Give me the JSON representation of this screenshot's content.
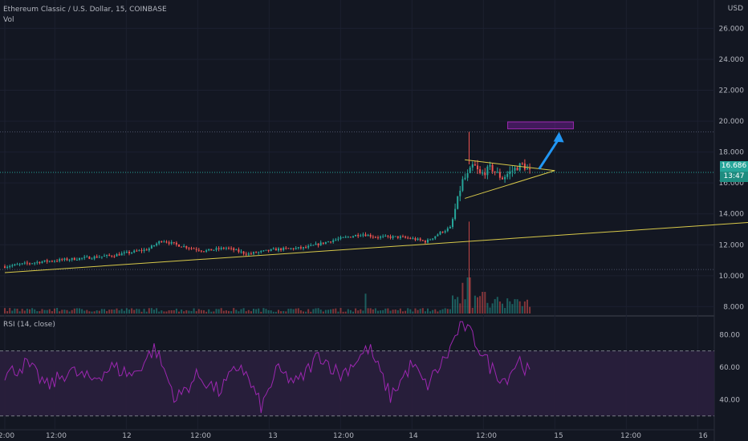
{
  "header": {
    "symbol_line": "Ethereum Classic / U.S. Dollar, 15, COINBASE",
    "volume_label": "Vol",
    "currency": "USD"
  },
  "price_badge": {
    "value": "16.686",
    "countdown": "13:47"
  },
  "rsi_panel": {
    "label": "RSI (14, close)"
  },
  "colors": {
    "background": "#131722",
    "up": "#26a69a",
    "down": "#ef5350",
    "rsi_line": "#9c27b0",
    "trendline": "#d8c94a",
    "arrow": "#2196f3",
    "target_box": "#7b1fa2"
  },
  "chart_data": [
    {
      "type": "candlestick",
      "title": "",
      "x_axis_labels": [
        "2:00",
        "12:00",
        "12",
        "12:00",
        "13",
        "12:00",
        "14",
        "12:00",
        "15",
        "12:00",
        "16"
      ],
      "y_axis_labels": [
        "26.000",
        "24.000",
        "22.000",
        "20.000",
        "18.000",
        "16.000",
        "14.000",
        "12.000",
        "10.000",
        "8.000"
      ],
      "ylim": [
        7.5,
        26.8
      ],
      "reference_levels": [
        19.3,
        10.4
      ],
      "last_price": 16.686,
      "price_path": [
        [
          0,
          10.6
        ],
        [
          0.25,
          10.9
        ],
        [
          0.5,
          11.1
        ],
        [
          0.75,
          11.3
        ],
        [
          1.0,
          11.7
        ],
        [
          1.1,
          12.3
        ],
        [
          1.2,
          12.0
        ],
        [
          1.4,
          11.6
        ],
        [
          1.55,
          11.8
        ],
        [
          1.7,
          11.4
        ],
        [
          1.9,
          11.7
        ],
        [
          2.1,
          11.8
        ],
        [
          2.3,
          12.3
        ],
        [
          2.5,
          12.7
        ],
        [
          2.6,
          12.5
        ],
        [
          2.75,
          12.5
        ],
        [
          2.85,
          12.4
        ],
        [
          2.95,
          12.2
        ],
        [
          3.05,
          12.8
        ],
        [
          3.12,
          13.1
        ],
        [
          3.15,
          14.2
        ],
        [
          3.18,
          15.3
        ],
        [
          3.2,
          16.1
        ],
        [
          3.24,
          16.5
        ],
        [
          3.28,
          17.2
        ],
        [
          3.33,
          16.5
        ],
        [
          3.4,
          17.0
        ],
        [
          3.48,
          16.3
        ],
        [
          3.55,
          16.8
        ],
        [
          3.62,
          17.2
        ],
        [
          3.68,
          16.686
        ]
      ],
      "spike_high": 19.3,
      "trendlines": [
        {
          "from": [
            0,
            10.2
          ],
          "to": [
            5.3,
            13.5
          ]
        },
        {
          "from": [
            3.22,
            15.0
          ],
          "to": [
            3.85,
            16.8
          ]
        },
        {
          "from": [
            3.22,
            17.5
          ],
          "to": [
            3.85,
            16.8
          ]
        }
      ],
      "target_zone": {
        "x_from": 3.52,
        "x_to": 3.98,
        "y_from": 19.5,
        "y_to": 19.95
      },
      "projection_arrow": {
        "from": [
          3.74,
          16.9
        ],
        "to": [
          3.88,
          19.3
        ]
      }
    },
    {
      "type": "bar",
      "title": "Vol",
      "note": "volume histogram; relative heights 0-1",
      "base_level": 0.12,
      "spikes": [
        {
          "x": 2.52,
          "value": 0.55
        },
        {
          "x": 3.13,
          "value": 0.5
        },
        {
          "x": 3.2,
          "value": 0.85
        },
        {
          "x": 3.25,
          "value": 1.0
        },
        {
          "x": 3.3,
          "value": 0.45
        },
        {
          "x": 3.35,
          "value": 0.6
        }
      ]
    },
    {
      "type": "line",
      "title": "RSI (14, close)",
      "y_axis_labels": [
        "80.00",
        "60.00",
        "40.00"
      ],
      "ylim": [
        22,
        90
      ],
      "bands": [
        70,
        30
      ],
      "series": [
        {
          "name": "RSI",
          "values": [
            [
              0,
              55
            ],
            [
              0.15,
              62
            ],
            [
              0.3,
              48
            ],
            [
              0.45,
              58
            ],
            [
              0.6,
              52
            ],
            [
              0.75,
              60
            ],
            [
              0.9,
              55
            ],
            [
              1.05,
              72
            ],
            [
              1.2,
              40
            ],
            [
              1.35,
              55
            ],
            [
              1.5,
              45
            ],
            [
              1.65,
              62
            ],
            [
              1.8,
              35
            ],
            [
              1.9,
              58
            ],
            [
              2.05,
              50
            ],
            [
              2.2,
              68
            ],
            [
              2.35,
              55
            ],
            [
              2.55,
              72
            ],
            [
              2.7,
              42
            ],
            [
              2.85,
              62
            ],
            [
              2.95,
              48
            ],
            [
              3.1,
              68
            ],
            [
              3.2,
              88
            ],
            [
              3.3,
              75
            ],
            [
              3.4,
              60
            ],
            [
              3.5,
              52
            ],
            [
              3.6,
              65
            ],
            [
              3.68,
              55
            ]
          ]
        }
      ]
    }
  ]
}
